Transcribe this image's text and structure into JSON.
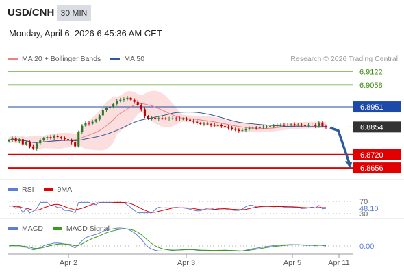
{
  "header": {
    "pair": "USD/CNH",
    "timeframe": "30 MIN",
    "datetime": "Monday, April 6, 2026 6:45:36 AM CET",
    "credit": "Research © 2026 Trading Central"
  },
  "legends": {
    "main": [
      {
        "label": "MA 20 + Bollinger Bands",
        "color": "#f08080"
      },
      {
        "label": "MA 50",
        "color": "#2e5a9a"
      }
    ],
    "rsi": [
      {
        "label": "RSI",
        "color": "#5b7fd6"
      },
      {
        "label": "9MA",
        "color": "#e00000"
      }
    ],
    "macd": [
      {
        "label": "MACD",
        "color": "#5b7fd6"
      },
      {
        "label": "MACD Signal",
        "color": "#3a9a1a"
      }
    ]
  },
  "colors": {
    "green_line": "#8dc26d",
    "green_text": "#3d8a12",
    "blue_level": "#1d4aa8",
    "red_level": "#e00000",
    "current_price_bg": "#333333",
    "arrow": "#2e5a9a",
    "band_fill": "#fcdede",
    "candle_up": "#2b7a2b",
    "candle_down": "#c00000"
  },
  "chart_data": [
    {
      "type": "candlestick",
      "panel": "price",
      "ylim": [
        6.86,
        6.915
      ],
      "x_ticks": [
        "Apr 2",
        "Apr 3",
        "Apr 5",
        "Apr 11"
      ],
      "levels": [
        {
          "label": "6.9122",
          "value": 6.9122,
          "style": "green-text"
        },
        {
          "label": "6.9058",
          "value": 6.9058,
          "style": "green-text"
        },
        {
          "label": "6.8951",
          "value": 6.8951,
          "style": "blue-tag"
        },
        {
          "label": "6.8854",
          "value": 6.8854,
          "style": "current-tag"
        },
        {
          "label": "6.8720",
          "value": 6.872,
          "style": "red-tag"
        },
        {
          "label": "6.8656",
          "value": 6.8656,
          "style": "red-tag"
        }
      ],
      "forecast_arrow": {
        "from": 6.885,
        "to": 6.866
      },
      "close_series": [
        6.879,
        6.88,
        6.8785,
        6.8795,
        6.877,
        6.878,
        6.876,
        6.875,
        6.8775,
        6.879,
        6.88,
        6.8805,
        6.88,
        6.881,
        6.8805,
        6.88,
        6.8795,
        6.879,
        6.878,
        6.876,
        6.883,
        6.886,
        6.8875,
        6.887,
        6.888,
        6.889,
        6.891,
        6.8935,
        6.8945,
        6.895,
        6.8965,
        6.898,
        6.8985,
        6.899,
        6.8995,
        6.8985,
        6.8975,
        6.896,
        6.894,
        6.8905,
        6.8895,
        6.8898,
        6.8895,
        6.8897,
        6.8896,
        6.8894,
        6.8895,
        6.8896,
        6.8895,
        6.8893,
        6.8894,
        6.889,
        6.8885,
        6.888,
        6.8872,
        6.8868,
        6.887,
        6.8868,
        6.8865,
        6.886,
        6.8862,
        6.8858,
        6.8855,
        6.885,
        6.8845,
        6.884,
        6.8835,
        6.8838,
        6.8845,
        6.8848,
        6.885,
        6.8849,
        6.8852,
        6.8855,
        6.8856,
        6.8858,
        6.886,
        6.8862,
        6.8864,
        6.8863,
        6.8865,
        6.8867,
        6.8864,
        6.8866,
        6.8862,
        6.886,
        6.8864,
        6.8865,
        6.8858,
        6.8876,
        6.8858,
        6.8854
      ]
    },
    {
      "type": "line",
      "panel": "rsi",
      "ylim": [
        30,
        70
      ],
      "levels": [
        70,
        30
      ],
      "current_label": "48.10",
      "level_labels": [
        "70",
        "30"
      ]
    },
    {
      "type": "line",
      "panel": "macd",
      "current_label": "0.00"
    }
  ]
}
